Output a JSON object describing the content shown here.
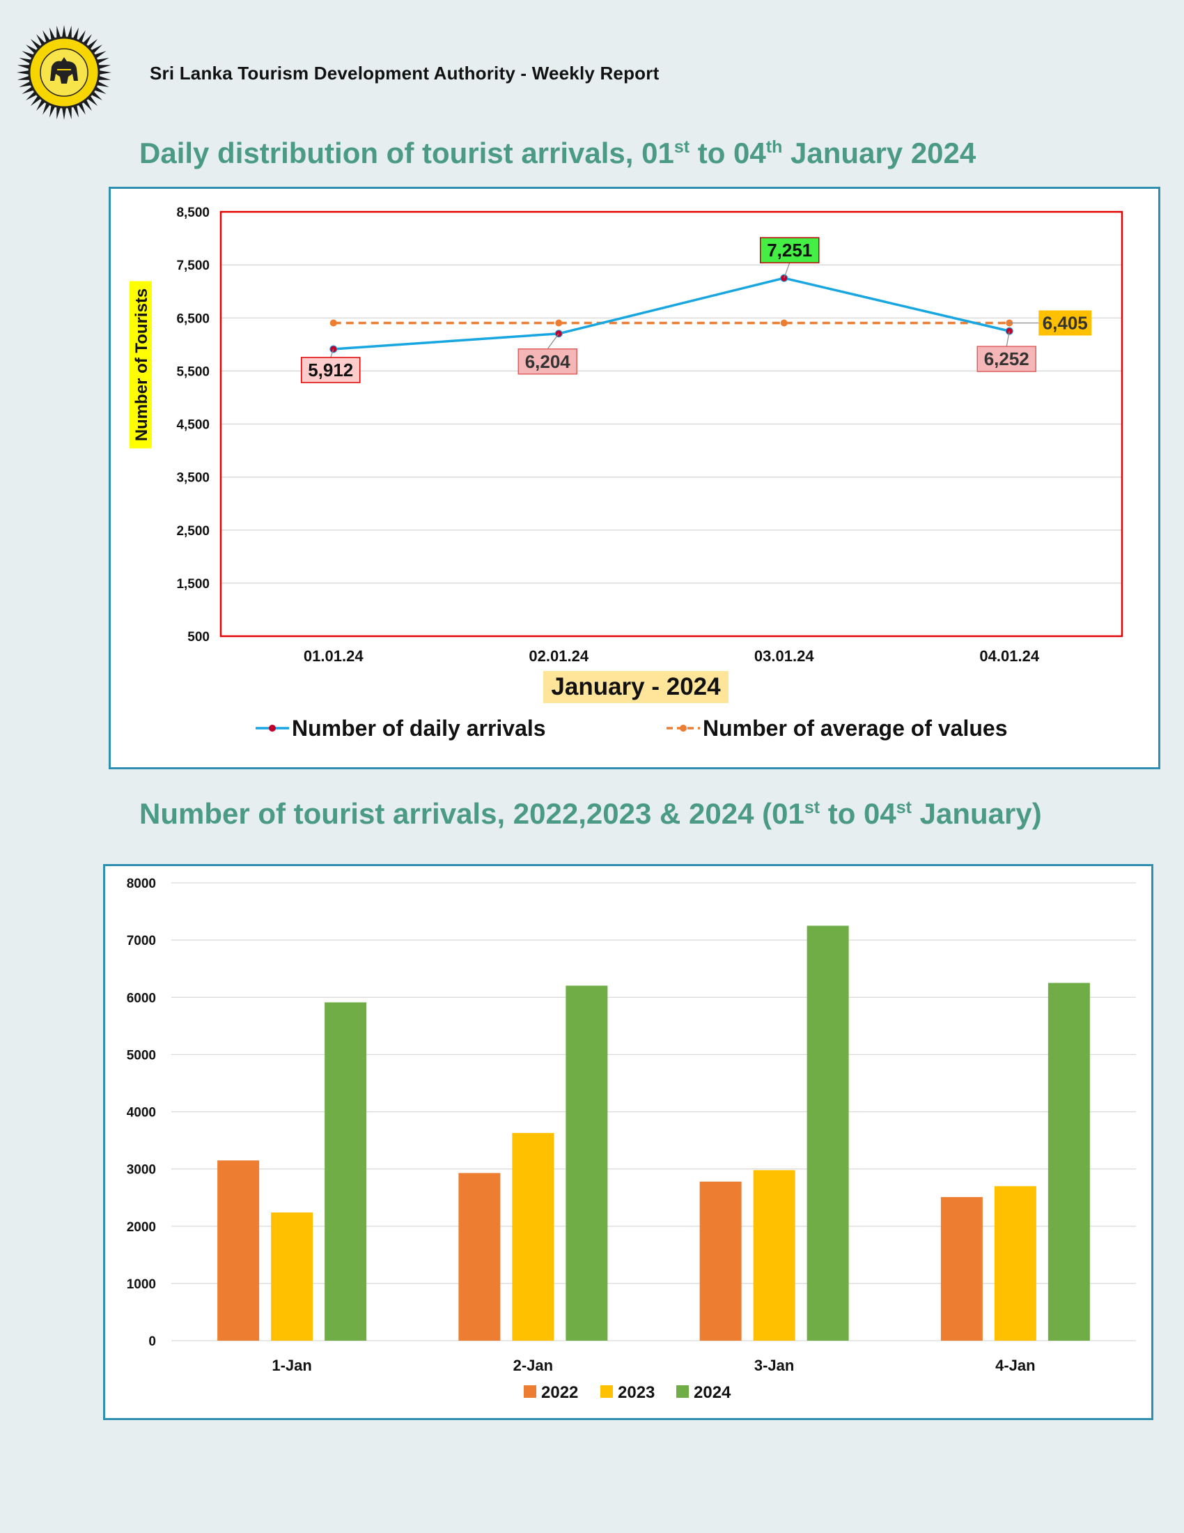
{
  "header": {
    "organization": "Sri Lanka Tourism Development Authority  - Weekly Report"
  },
  "colors": {
    "daily": "#17a6e0",
    "average": "#ed7d31",
    "y2022": "#ed7d31",
    "y2023": "#ffc000",
    "y2024": "#70ad47",
    "plot_border": "#e00000",
    "box_border": "#2e8fb0"
  },
  "chart_data": [
    {
      "type": "line",
      "title": {
        "main": "Daily distribution of tourist arrivals, 01",
        "sup1": "st",
        "mid": " to 04",
        "sup2": "th",
        "end": " January 2024"
      },
      "ylabel": "Number of Tourists",
      "xlabel": "January  - 2024",
      "categories": [
        "01.01.24",
        "02.01.24",
        "03.01.24",
        "04.01.24"
      ],
      "ylim": [
        500,
        8500
      ],
      "yticks": [
        "500",
        "1,500",
        "2,500",
        "3,500",
        "4,500",
        "5,500",
        "6,500",
        "7,500",
        "8,500"
      ],
      "series": [
        {
          "name": "Number of daily arrivals",
          "values": [
            5912,
            6204,
            7251,
            6252
          ],
          "labels": [
            "5,912",
            "6,204",
            "7,251",
            "6,252"
          ]
        },
        {
          "name": "Number of average of values",
          "values": [
            6405,
            6405,
            6405,
            6405
          ],
          "labels": [
            "6,405"
          ]
        }
      ],
      "grid": true,
      "legend": "bottom"
    },
    {
      "type": "bar",
      "title": {
        "main": "Number of tourist arrivals, 2022,2023 & 2024 (01",
        "sup1": "st",
        "mid": " to 04",
        "sup2": "st",
        "end": " January)"
      },
      "categories": [
        "1-Jan",
        "2-Jan",
        "3-Jan",
        "4-Jan"
      ],
      "ylim": [
        0,
        8000
      ],
      "yticks": [
        "0",
        "1000",
        "2000",
        "3000",
        "4000",
        "5000",
        "6000",
        "7000",
        "8000"
      ],
      "series": [
        {
          "name": "2022",
          "values": [
            3150,
            2930,
            2780,
            2510
          ]
        },
        {
          "name": "2023",
          "values": [
            2240,
            3630,
            2980,
            2700
          ]
        },
        {
          "name": "2024",
          "values": [
            5912,
            6204,
            7251,
            6252
          ]
        }
      ],
      "grid": true,
      "legend": "bottom"
    }
  ]
}
